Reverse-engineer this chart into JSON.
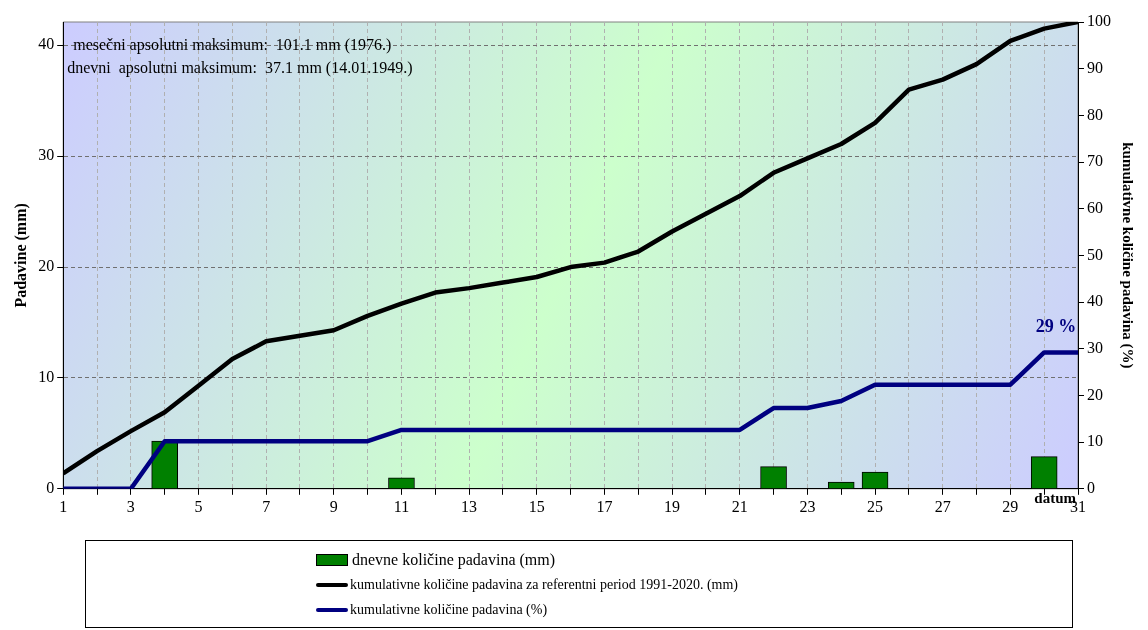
{
  "chart_data": {
    "type": "bar",
    "xlabel": "datum",
    "ylabel": "Padavine (mm)",
    "y2label": "kumulativne količine padavina (%)",
    "x": [
      1,
      2,
      3,
      4,
      5,
      6,
      7,
      8,
      9,
      10,
      11,
      12,
      13,
      14,
      15,
      16,
      17,
      18,
      19,
      20,
      21,
      22,
      23,
      24,
      25,
      26,
      27,
      28,
      29,
      30,
      31
    ],
    "series": [
      {
        "name": "dnevne količine padavina (mm)",
        "color": "#008000",
        "values": [
          null,
          null,
          null,
          4.3,
          null,
          null,
          null,
          null,
          null,
          null,
          1.0,
          null,
          null,
          null,
          null,
          null,
          null,
          null,
          null,
          null,
          null,
          2.0,
          null,
          0.6,
          1.5,
          null,
          null,
          null,
          null,
          2.9,
          null
        ]
      },
      {
        "name": "kumulativne količine padavina za referentni period 1991-2020. (mm)",
        "type": "line",
        "color": "#000000",
        "values": [
          1.4,
          3.4,
          5.2,
          6.9,
          9.3,
          11.7,
          13.3,
          13.8,
          14.3,
          15.6,
          16.7,
          17.7,
          18.1,
          18.6,
          19.1,
          20.0,
          20.4,
          21.4,
          23.2,
          24.8,
          26.4,
          28.5,
          29.8,
          31.1,
          33.0,
          36.0,
          36.9,
          38.3,
          40.4,
          41.5,
          42.1
        ]
      },
      {
        "name": "kumulativne količine padavina (%)",
        "type": "line",
        "axis": "y2",
        "color": "#000080",
        "values": [
          0,
          0,
          0,
          10.2,
          10.2,
          10.2,
          10.2,
          10.2,
          10.2,
          10.2,
          12.6,
          12.6,
          12.6,
          12.6,
          12.6,
          12.6,
          12.6,
          12.6,
          12.6,
          12.6,
          12.6,
          17.3,
          17.3,
          18.8,
          22.3,
          22.3,
          22.3,
          22.3,
          22.3,
          29.2,
          29.2
        ]
      }
    ],
    "xlim": [
      1,
      31
    ],
    "xticks": [
      1,
      {
        "value": 2,
        "label": null
      },
      3,
      {
        "value": 4,
        "label": null
      },
      5,
      {
        "value": 6,
        "label": null
      },
      7,
      {
        "value": 8,
        "label": null
      },
      9,
      {
        "value": 10,
        "label": null
      },
      11,
      {
        "value": 12,
        "label": null
      },
      13,
      {
        "value": 14,
        "label": null
      },
      15,
      {
        "value": 16,
        "label": null
      },
      17,
      {
        "value": 18,
        "label": null
      },
      19,
      {
        "value": 20,
        "label": null
      },
      21,
      {
        "value": 22,
        "label": null
      },
      23,
      {
        "value": 24,
        "label": null
      },
      25,
      {
        "value": 26,
        "label": null
      },
      27,
      {
        "value": 28,
        "label": null
      },
      29,
      {
        "value": 30,
        "label": null
      },
      31
    ],
    "ylim": [
      0,
      42.1
    ],
    "yticks": [
      0,
      10,
      20,
      30,
      40
    ],
    "y2lim": [
      0,
      100
    ],
    "y2ticks": [
      0,
      10,
      20,
      30,
      40,
      50,
      60,
      70,
      80,
      90,
      100
    ],
    "grid": true,
    "legend": "bottom",
    "marker": "none",
    "line_style": "solid",
    "annotations": [
      "mesečni apsolutni maksimum:  101.1 mm (1976.)",
      "dnevni  apsolutni maksimum:  37.1 mm (14.01.1949.)",
      "29 %"
    ]
  }
}
